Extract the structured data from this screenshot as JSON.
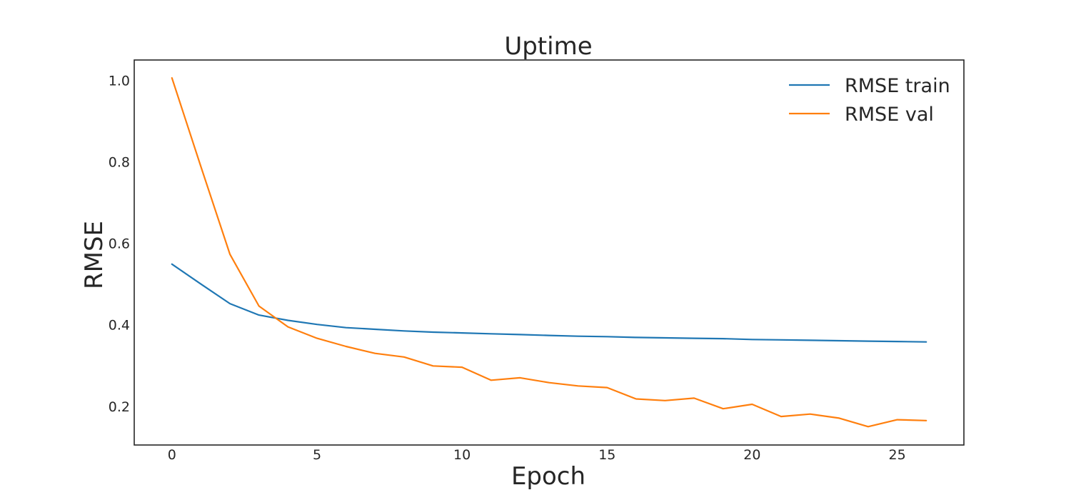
{
  "chart_data": {
    "type": "line",
    "title": "Uptime",
    "xlabel": "Epoch",
    "ylabel": "RMSE",
    "xlim": [
      -1.3,
      27.3
    ],
    "ylim": [
      0.105,
      1.05
    ],
    "xticks": [
      0,
      5,
      10,
      15,
      20,
      25
    ],
    "yticks": [
      0.2,
      0.4,
      0.6,
      0.8,
      1.0
    ],
    "ytick_labels": [
      "0.2",
      "0.4",
      "0.6",
      "0.8",
      "1.0"
    ],
    "grid": false,
    "legend_position": "top-right",
    "x": [
      0,
      1,
      2,
      3,
      4,
      5,
      6,
      7,
      8,
      9,
      10,
      11,
      12,
      13,
      14,
      15,
      16,
      17,
      18,
      19,
      20,
      21,
      22,
      23,
      24,
      25,
      26
    ],
    "series": [
      {
        "name": "RMSE train",
        "color": "#1f77b4",
        "values": [
          0.549,
          0.5,
          0.452,
          0.424,
          0.411,
          0.401,
          0.393,
          0.389,
          0.385,
          0.382,
          0.38,
          0.378,
          0.376,
          0.374,
          0.372,
          0.371,
          0.369,
          0.368,
          0.367,
          0.366,
          0.364,
          0.363,
          0.362,
          0.361,
          0.36,
          0.359,
          0.358
        ]
      },
      {
        "name": "RMSE val",
        "color": "#ff7f0e",
        "values": [
          1.006,
          0.788,
          0.573,
          0.446,
          0.395,
          0.367,
          0.347,
          0.33,
          0.321,
          0.299,
          0.296,
          0.264,
          0.27,
          0.258,
          0.25,
          0.246,
          0.218,
          0.214,
          0.22,
          0.194,
          0.205,
          0.175,
          0.181,
          0.171,
          0.15,
          0.167,
          0.165
        ]
      }
    ]
  }
}
